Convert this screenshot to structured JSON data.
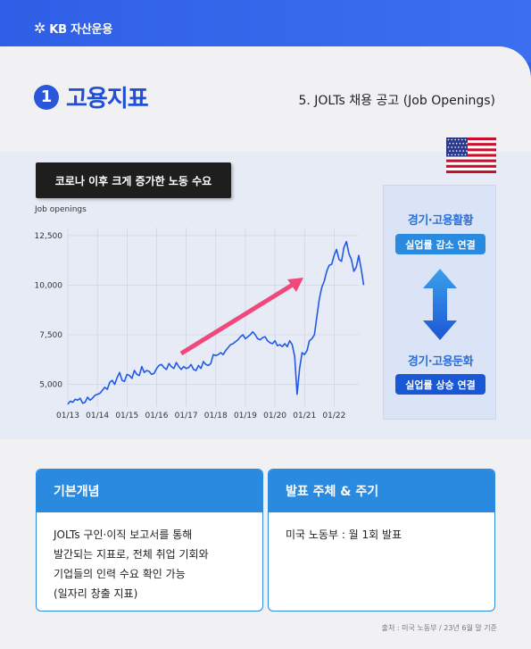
{
  "brand": {
    "name": "KB 자산운용"
  },
  "header": {
    "number": "1",
    "title": "고용지표",
    "subtitle": "5. JOLTs 채용 공고 (Job Openings)"
  },
  "callout": "코로나 이후 크게 증가한 노동 수요",
  "side": {
    "top_label": "경기·고용활황",
    "top_pill": "실업률 감소 연결",
    "bottom_label": "경기·고용둔화",
    "bottom_pill": "실업률 상승 연결"
  },
  "boxes": {
    "concept_title": "기본개념",
    "concept_lines": [
      "JOLTs 구인·이직 보고서를 통해",
      "발간되는 지표로, 전체 취업 기회와",
      "기업들의 인력 수요 확인 가능",
      "(일자리 창출 지표)"
    ],
    "release_title": "발표 주체 & 주기",
    "release_text": "미국 노동부 : 월 1회 발표"
  },
  "source": "출처 : 미국 노동부 / 23년 6월 말 기준",
  "colors": {
    "primary": "#1f4fd6",
    "line": "#2159e8",
    "trend_arrow": "#f0487a"
  },
  "chart_data": {
    "type": "line",
    "ylabel": "Job openings",
    "yticks": [
      5000,
      7500,
      10000,
      12500
    ],
    "ylim": [
      3900,
      12900
    ],
    "xticks": [
      "01/13",
      "01/14",
      "01/15",
      "01/16",
      "01/17",
      "01/18",
      "01/19",
      "01/20",
      "01/21",
      "01/22"
    ],
    "xlim": [
      0,
      118
    ],
    "grid": true,
    "series": [
      {
        "values": [
          4000,
          4150,
          4100,
          4250,
          4200,
          4300,
          4050,
          4100,
          4350,
          4200,
          4300,
          4450,
          4500,
          4550,
          4700,
          4850,
          4750,
          5100,
          5200,
          5000,
          5350,
          5600,
          5200,
          5150,
          5500,
          5450,
          5300,
          5700,
          5500,
          5450,
          5900,
          5600,
          5700,
          5650,
          5500,
          5550,
          5800,
          5950,
          6000,
          5850,
          5750,
          6050,
          5900,
          5800,
          6100,
          5900,
          5750,
          5900,
          5800,
          5850,
          6000,
          5750,
          5700,
          5950,
          5800,
          6150,
          6000,
          5950,
          6050,
          6500,
          6450,
          6500,
          6600,
          6500,
          6700,
          6850,
          7000,
          7050,
          7150,
          7250,
          7400,
          7500,
          7300,
          7400,
          7500,
          7650,
          7500,
          7300,
          7250,
          7350,
          7400,
          7200,
          7100,
          7050,
          7200,
          6950,
          7000,
          6900,
          7050,
          6900,
          7200,
          7000,
          6400,
          4500,
          5800,
          6600,
          6500,
          6700,
          7200,
          7300,
          7500,
          8400,
          9300,
          9900,
          10200,
          10700,
          11000,
          11050,
          11500,
          11800,
          11300,
          11200,
          11900,
          12200,
          11600,
          11300,
          10700,
          10900,
          11500,
          10800,
          10000
        ]
      }
    ]
  }
}
